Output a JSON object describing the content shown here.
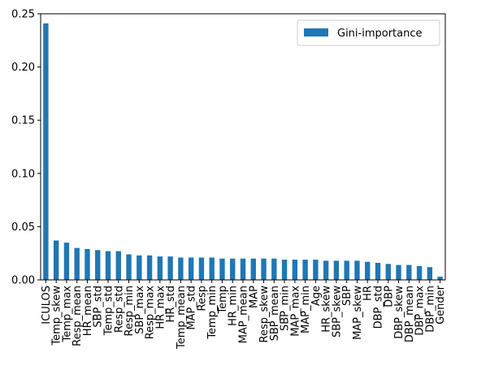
{
  "chart_data": {
    "type": "bar",
    "categories": [
      "ICULOS",
      "Temp_skew",
      "Temp_max",
      "Resp_mean",
      "HR_mean",
      "SBP_std",
      "Temp_std",
      "Resp_std",
      "Resp_min",
      "SBP_max",
      "Resp_max",
      "HR_max",
      "HR_std",
      "Temp_mean",
      "MAP_std",
      "Resp",
      "Temp_min",
      "Temp",
      "HR_min",
      "MAP_mean",
      "MAP",
      "Resp_skew",
      "SBP_mean",
      "SBP_min",
      "MAP_max",
      "MAP_min",
      "Age",
      "HR_skew",
      "SBP_skew",
      "SBP",
      "MAP_skew",
      "HR",
      "DBP_std",
      "DBP",
      "DBP_skew",
      "DBP_mean",
      "DBP_max",
      "DBP_min",
      "Gender"
    ],
    "series": [
      {
        "name": "Gini-importance",
        "color": "#1f77b4",
        "values": [
          0.241,
          0.037,
          0.035,
          0.03,
          0.029,
          0.028,
          0.027,
          0.027,
          0.024,
          0.023,
          0.023,
          0.022,
          0.022,
          0.021,
          0.021,
          0.021,
          0.021,
          0.02,
          0.02,
          0.02,
          0.02,
          0.02,
          0.02,
          0.019,
          0.019,
          0.019,
          0.019,
          0.018,
          0.018,
          0.018,
          0.018,
          0.017,
          0.016,
          0.015,
          0.014,
          0.014,
          0.013,
          0.012,
          0.003
        ]
      }
    ],
    "yticks": [
      "0.00",
      "0.05",
      "0.10",
      "0.15",
      "0.20",
      "0.25"
    ],
    "ylim": [
      0,
      0.25
    ],
    "grid": false,
    "legend_position": "top-right"
  }
}
